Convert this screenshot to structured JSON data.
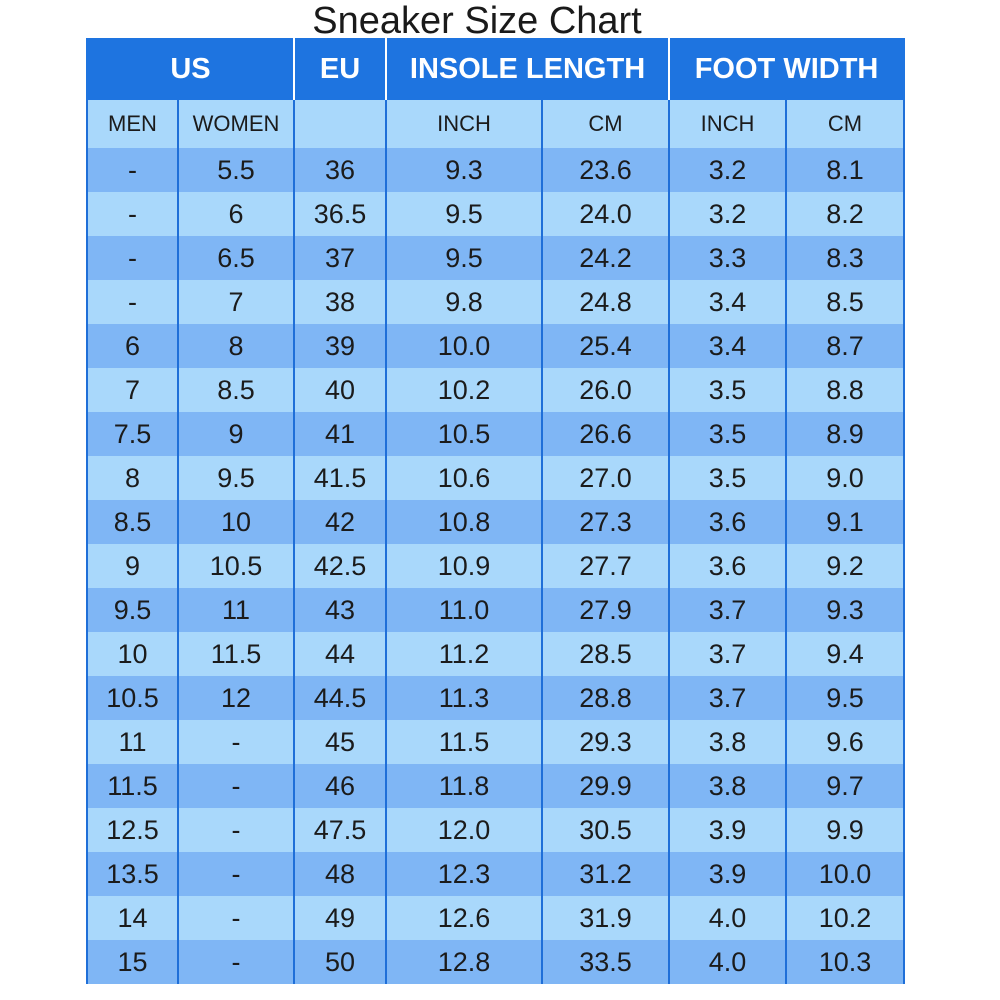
{
  "title": "Sneaker Size Chart",
  "colors": {
    "header_bg": "#1e74e0",
    "header_text": "#ffffff",
    "row_dark": "#7fb6f5",
    "row_light": "#a9d8fb",
    "grid_line": "#1f6fd8"
  },
  "chart_data": {
    "type": "table",
    "title": "Sneaker Size Chart",
    "group_headers": [
      "US",
      "EU",
      "INSOLE LENGTH",
      "FOOT WIDTH"
    ],
    "sub_headers": [
      "MEN",
      "WOMEN",
      "",
      "INCH",
      "CM",
      "INCH",
      "CM"
    ],
    "rows": [
      [
        "-",
        "5.5",
        "36",
        "9.3",
        "23.6",
        "3.2",
        "8.1"
      ],
      [
        "-",
        "6",
        "36.5",
        "9.5",
        "24.0",
        "3.2",
        "8.2"
      ],
      [
        "-",
        "6.5",
        "37",
        "9.5",
        "24.2",
        "3.3",
        "8.3"
      ],
      [
        "-",
        "7",
        "38",
        "9.8",
        "24.8",
        "3.4",
        "8.5"
      ],
      [
        "6",
        "8",
        "39",
        "10.0",
        "25.4",
        "3.4",
        "8.7"
      ],
      [
        "7",
        "8.5",
        "40",
        "10.2",
        "26.0",
        "3.5",
        "8.8"
      ],
      [
        "7.5",
        "9",
        "41",
        "10.5",
        "26.6",
        "3.5",
        "8.9"
      ],
      [
        "8",
        "9.5",
        "41.5",
        "10.6",
        "27.0",
        "3.5",
        "9.0"
      ],
      [
        "8.5",
        "10",
        "42",
        "10.8",
        "27.3",
        "3.6",
        "9.1"
      ],
      [
        "9",
        "10.5",
        "42.5",
        "10.9",
        "27.7",
        "3.6",
        "9.2"
      ],
      [
        "9.5",
        "11",
        "43",
        "11.0",
        "27.9",
        "3.7",
        "9.3"
      ],
      [
        "10",
        "11.5",
        "44",
        "11.2",
        "28.5",
        "3.7",
        "9.4"
      ],
      [
        "10.5",
        "12",
        "44.5",
        "11.3",
        "28.8",
        "3.7",
        "9.5"
      ],
      [
        "11",
        "-",
        "45",
        "11.5",
        "29.3",
        "3.8",
        "9.6"
      ],
      [
        "11.5",
        "-",
        "46",
        "11.8",
        "29.9",
        "3.8",
        "9.7"
      ],
      [
        "12.5",
        "-",
        "47.5",
        "12.0",
        "30.5",
        "3.9",
        "9.9"
      ],
      [
        "13.5",
        "-",
        "48",
        "12.3",
        "31.2",
        "3.9",
        "10.0"
      ],
      [
        "14",
        "-",
        "49",
        "12.6",
        "31.9",
        "4.0",
        "10.2"
      ],
      [
        "15",
        "-",
        "50",
        "12.8",
        "33.5",
        "4.0",
        "10.3"
      ]
    ]
  }
}
